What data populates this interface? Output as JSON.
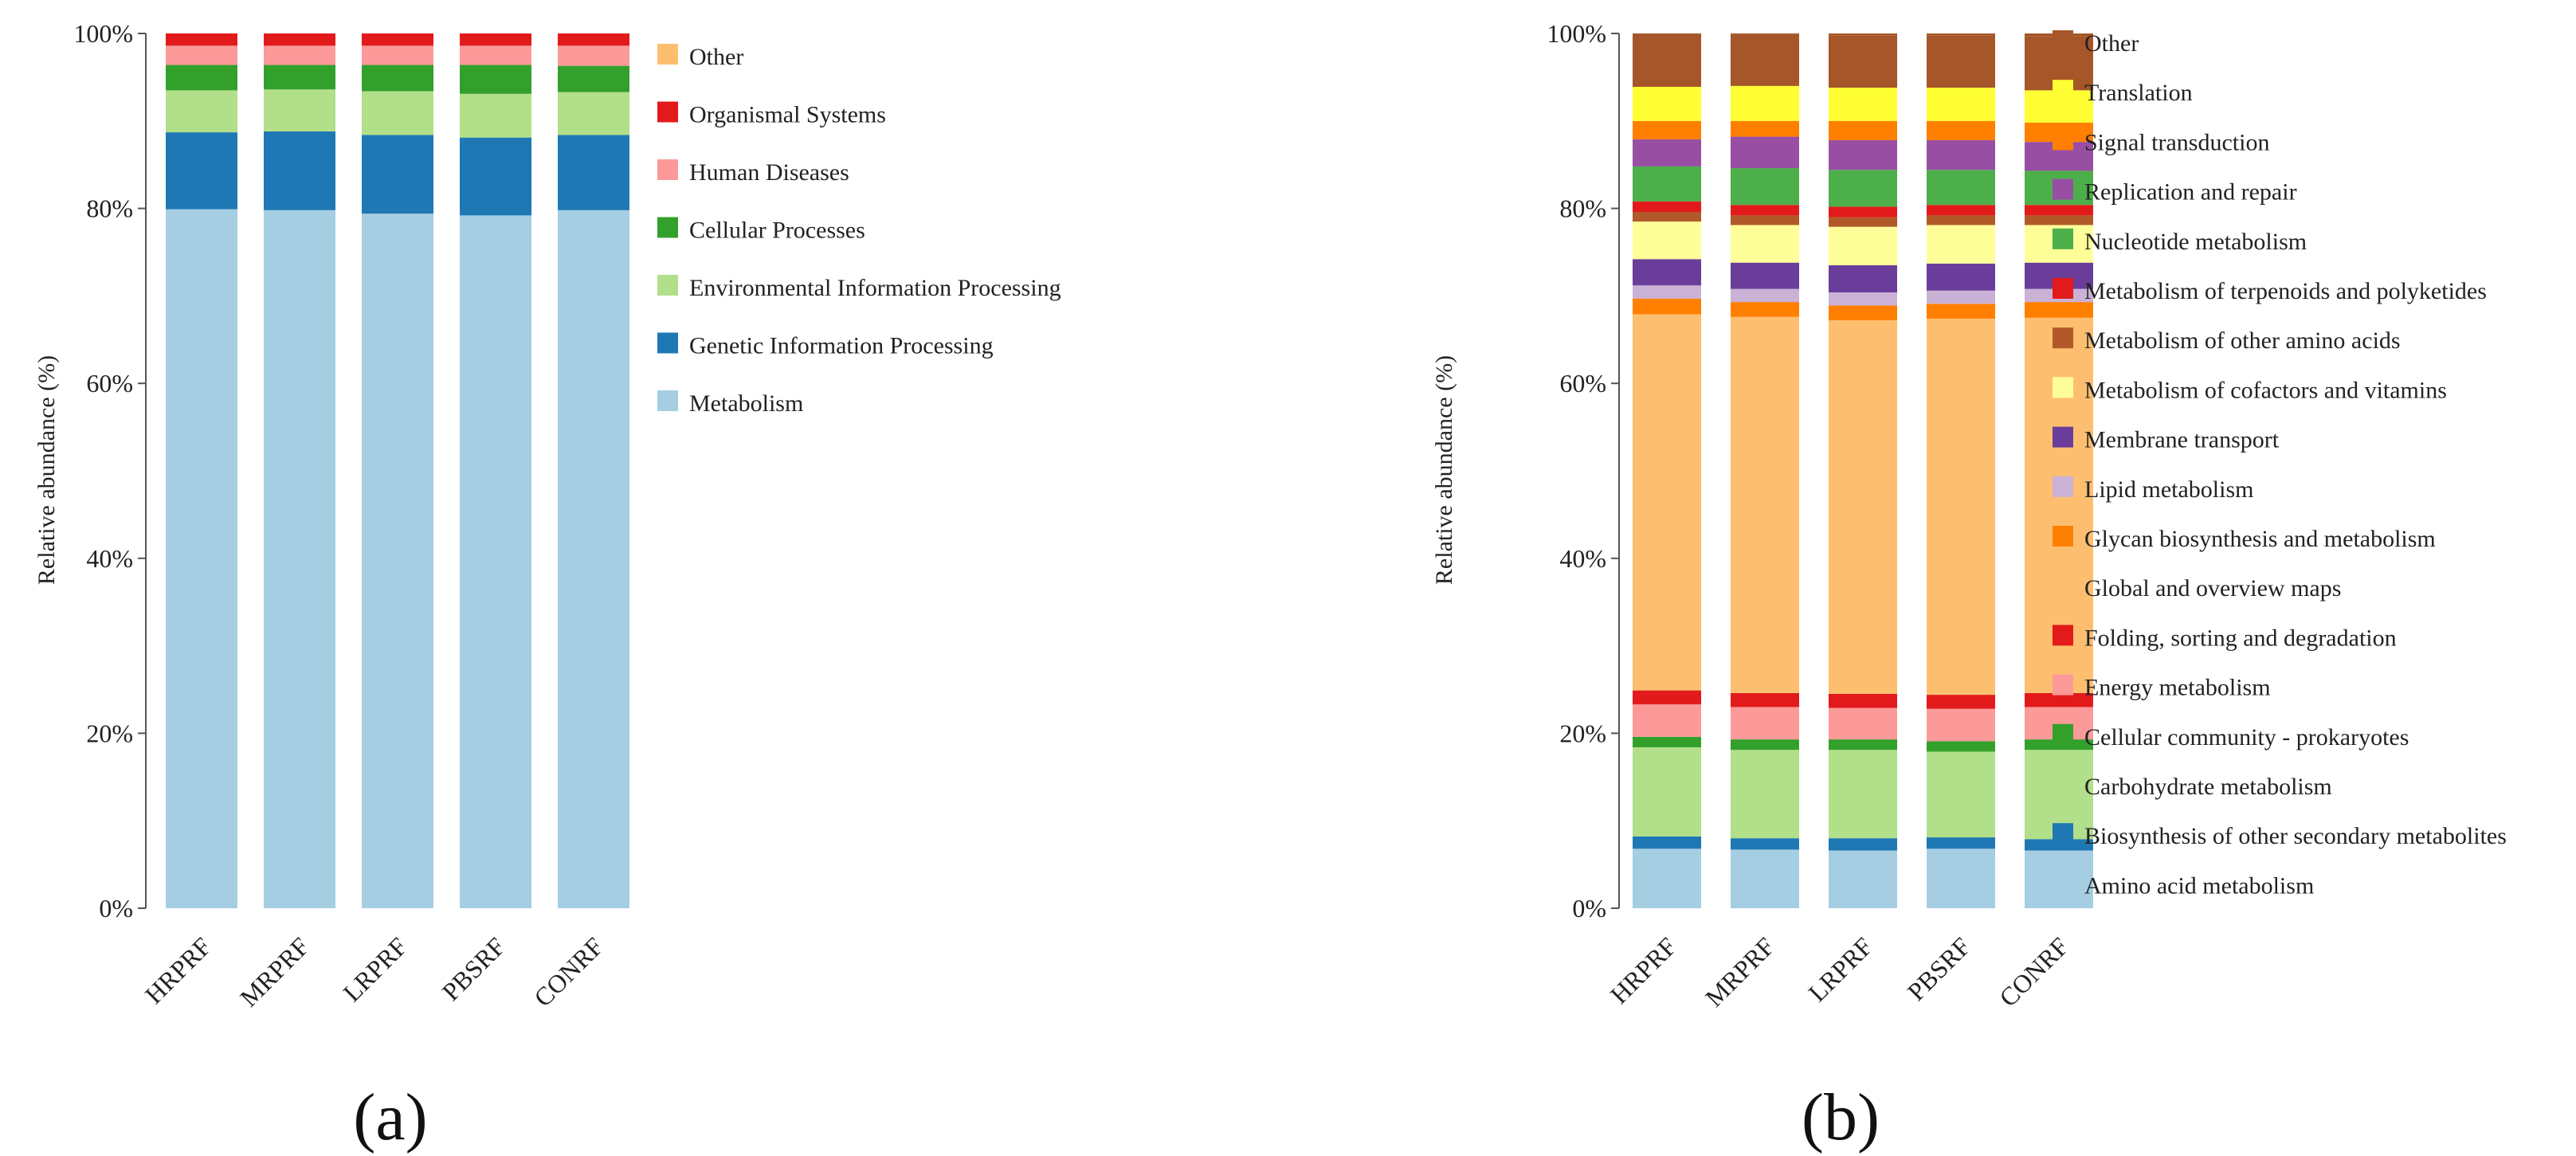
{
  "chart_data": [
    {
      "type": "bar",
      "stacked": true,
      "caption": "(a)",
      "ylabel": "Relative abundance (%)",
      "ylim": [
        0,
        100
      ],
      "yticks": [
        "0%",
        "20%",
        "40%",
        "60%",
        "80%",
        "100%"
      ],
      "categories": [
        "HRPRF",
        "MRPRF",
        "LRPRF",
        "PBSRF",
        "CONRF"
      ],
      "legend_position": "right",
      "legend_order": [
        "Other",
        "Organismal Systems",
        "Human Diseases",
        "Cellular Processes",
        "Environmental Information Processing",
        "Genetic Information Processing",
        "Metabolism"
      ],
      "series": [
        {
          "name": "Metabolism",
          "color": "#a6cee3",
          "values": [
            79.9,
            79.8,
            79.4,
            79.2,
            79.8
          ]
        },
        {
          "name": "Genetic Information Processing",
          "color": "#1f78b4",
          "values": [
            8.8,
            9.0,
            9.0,
            8.9,
            8.6
          ]
        },
        {
          "name": "Environmental Information Processing",
          "color": "#b2df8a",
          "values": [
            4.8,
            4.8,
            5.0,
            5.0,
            4.9
          ]
        },
        {
          "name": "Cellular Processes",
          "color": "#33a02c",
          "values": [
            2.9,
            2.8,
            3.0,
            3.3,
            3.0
          ]
        },
        {
          "name": "Human Diseases",
          "color": "#fb9a99",
          "values": [
            2.2,
            2.2,
            2.2,
            2.2,
            2.3
          ]
        },
        {
          "name": "Organismal Systems",
          "color": "#e31a1c",
          "values": [
            1.4,
            1.4,
            1.4,
            1.4,
            1.4
          ]
        },
        {
          "name": "Other",
          "color": "#fdbf6f",
          "values": [
            0.0,
            0.0,
            0.0,
            0.0,
            0.0
          ]
        }
      ]
    },
    {
      "type": "bar",
      "stacked": true,
      "caption": "(b)",
      "ylabel": "Relative abundance (%)",
      "ylim": [
        0,
        100
      ],
      "yticks": [
        "0%",
        "20%",
        "40%",
        "60%",
        "80%",
        "100%"
      ],
      "categories": [
        "HRPRF",
        "MRPRF",
        "LRPRF",
        "PBSRF",
        "CONRF"
      ],
      "legend_position": "right",
      "legend_order": [
        "Other",
        "Translation",
        "Signal transduction",
        "Replication and repair",
        "Nucleotide metabolism",
        "Metabolism of terpenoids and polyketides",
        "Metabolism of other amino acids",
        "Metabolism of cofactors and vitamins",
        "Membrane transport",
        "Lipid metabolism",
        "Glycan biosynthesis and metabolism",
        "Global and overview maps",
        "Folding, sorting and degradation",
        "Energy metabolism",
        "Cellular community - prokaryotes",
        "Carbohydrate metabolism",
        "Biosynthesis of other secondary metabolites",
        "Amino acid metabolism"
      ],
      "series": [
        {
          "name": "Amino acid metabolism",
          "color": "#a6cee3",
          "values": [
            6.8,
            6.7,
            6.6,
            6.8,
            6.6
          ]
        },
        {
          "name": "Biosynthesis of other secondary metabolites",
          "color": "#1f78b4",
          "values": [
            1.4,
            1.3,
            1.4,
            1.3,
            1.3
          ]
        },
        {
          "name": "Carbohydrate metabolism",
          "color": "#b2df8a",
          "values": [
            10.2,
            10.1,
            10.1,
            9.8,
            10.2
          ]
        },
        {
          "name": "Cellular community - prokaryotes",
          "color": "#33a02c",
          "values": [
            1.2,
            1.2,
            1.2,
            1.2,
            1.2
          ]
        },
        {
          "name": "Energy metabolism",
          "color": "#fb9a99",
          "values": [
            3.7,
            3.7,
            3.6,
            3.7,
            3.7
          ]
        },
        {
          "name": "Folding, sorting and degradation",
          "color": "#e31a1c",
          "values": [
            1.6,
            1.6,
            1.6,
            1.6,
            1.6
          ]
        },
        {
          "name": "Global and overview maps",
          "color": "#fdbf6f",
          "values": [
            43.0,
            43.0,
            42.7,
            43.0,
            42.9
          ]
        },
        {
          "name": "Glycan biosynthesis and metabolism",
          "color": "#ff7f00",
          "values": [
            1.8,
            1.7,
            1.7,
            1.7,
            1.8
          ]
        },
        {
          "name": "Lipid metabolism",
          "color": "#cab2d6",
          "values": [
            1.5,
            1.5,
            1.5,
            1.5,
            1.5
          ]
        },
        {
          "name": "Membrane transport",
          "color": "#6a3d9a",
          "values": [
            3.0,
            3.0,
            3.1,
            3.1,
            3.0
          ]
        },
        {
          "name": "Metabolism of cofactors and vitamins",
          "color": "#ffff99",
          "values": [
            4.3,
            4.3,
            4.4,
            4.4,
            4.3
          ]
        },
        {
          "name": "Metabolism of other amino acids",
          "color": "#b15928",
          "values": [
            1.1,
            1.1,
            1.1,
            1.1,
            1.1
          ]
        },
        {
          "name": "Metabolism of terpenoids and polyketides",
          "color": "#e31a1c",
          "values": [
            1.2,
            1.2,
            1.2,
            1.2,
            1.2
          ]
        },
        {
          "name": "Nucleotide metabolism",
          "color": "#4daf4a",
          "values": [
            4.0,
            4.2,
            4.2,
            4.0,
            3.9
          ]
        },
        {
          "name": "Replication and repair",
          "color": "#984ea3",
          "values": [
            3.1,
            3.6,
            3.4,
            3.4,
            3.3
          ]
        },
        {
          "name": "Signal transduction",
          "color": "#ff7f00",
          "values": [
            2.1,
            1.8,
            2.2,
            2.2,
            2.2
          ]
        },
        {
          "name": "Translation",
          "color": "#ffff33",
          "values": [
            3.9,
            4.0,
            3.8,
            3.8,
            3.7
          ]
        },
        {
          "name": "Other",
          "color": "#a65628",
          "values": [
            6.1,
            5.9,
            6.0,
            6.0,
            6.2
          ]
        }
      ]
    }
  ]
}
